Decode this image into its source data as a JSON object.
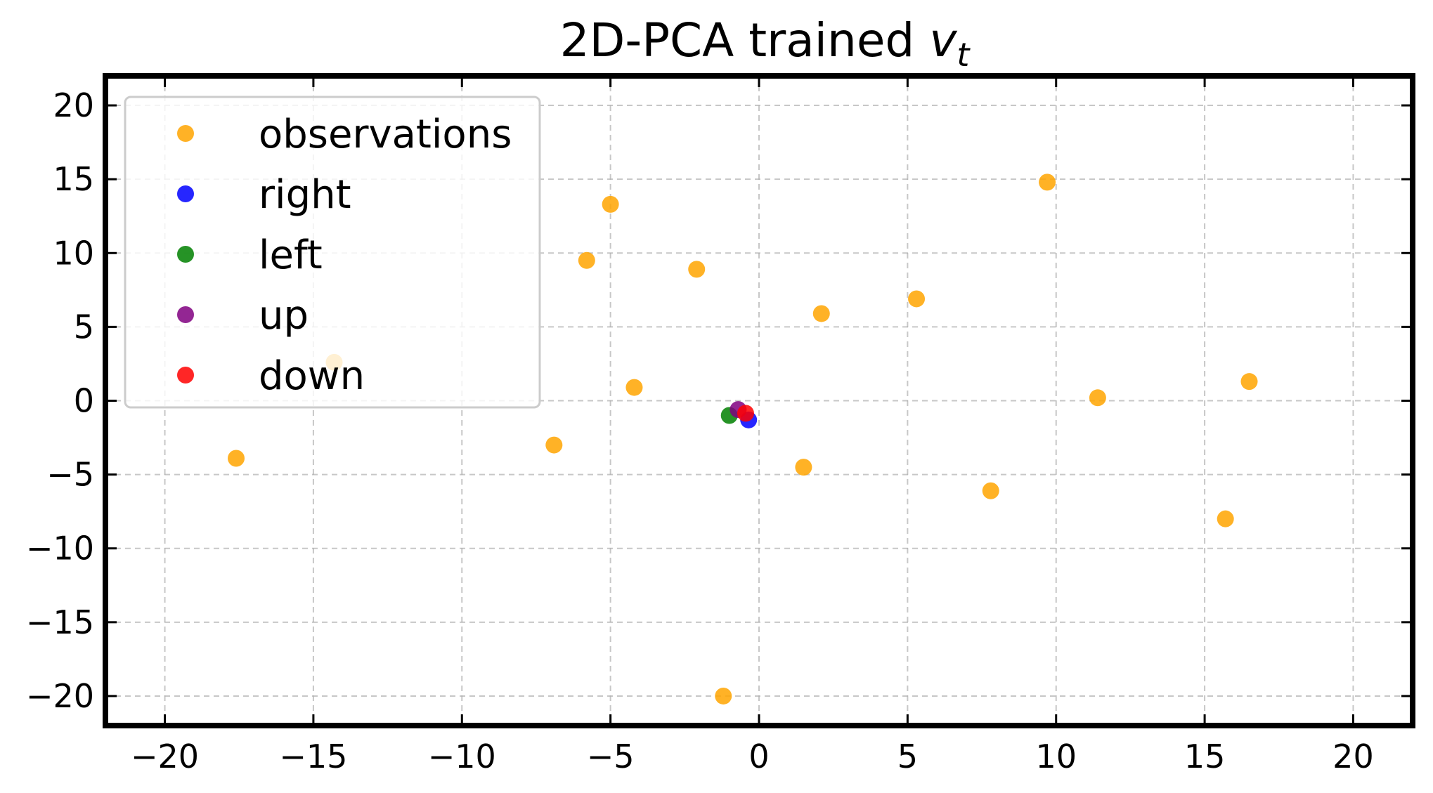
{
  "chart_data": {
    "type": "scatter",
    "title": {
      "prefix": "2D-PCA trained ",
      "var": "v",
      "sub": "t"
    },
    "xlabel": "",
    "ylabel": "",
    "xlim": [
      -22,
      22
    ],
    "ylim": [
      -22,
      22
    ],
    "xticks": [
      -20,
      -15,
      -10,
      -5,
      0,
      5,
      10,
      15,
      20
    ],
    "yticks": [
      -20,
      -15,
      -10,
      -5,
      0,
      5,
      10,
      15,
      20
    ],
    "xtick_labels": [
      "−20",
      "−15",
      "−10",
      "−5",
      "0",
      "5",
      "10",
      "15",
      "20"
    ],
    "ytick_labels": [
      "−20",
      "−15",
      "−10",
      "−5",
      "0",
      "5",
      "10",
      "15",
      "20"
    ],
    "grid": true,
    "legend_position": "upper-left",
    "series": [
      {
        "name": "observations",
        "color": "#ffa500",
        "points": [
          [
            -14.3,
            2.6
          ],
          [
            -17.6,
            -3.9
          ],
          [
            -6.9,
            -3.0
          ],
          [
            -4.2,
            0.9
          ],
          [
            -5.8,
            9.5
          ],
          [
            -5.0,
            13.3
          ],
          [
            -2.1,
            8.9
          ],
          [
            2.1,
            5.9
          ],
          [
            1.5,
            -4.5
          ],
          [
            5.3,
            6.9
          ],
          [
            7.8,
            -6.1
          ],
          [
            9.7,
            14.8
          ],
          [
            11.4,
            0.2
          ],
          [
            15.7,
            -8.0
          ],
          [
            16.5,
            1.3
          ],
          [
            -1.2,
            -20.0
          ]
        ]
      },
      {
        "name": "right",
        "color": "#0000ff",
        "points": [
          [
            -0.35,
            -1.3
          ]
        ]
      },
      {
        "name": "left",
        "color": "#008000",
        "points": [
          [
            -1.0,
            -1.0
          ]
        ]
      },
      {
        "name": "up",
        "color": "#800080",
        "points": [
          [
            -0.7,
            -0.6
          ]
        ]
      },
      {
        "name": "down",
        "color": "#ff0000",
        "points": [
          [
            -0.45,
            -0.85
          ]
        ]
      }
    ]
  }
}
